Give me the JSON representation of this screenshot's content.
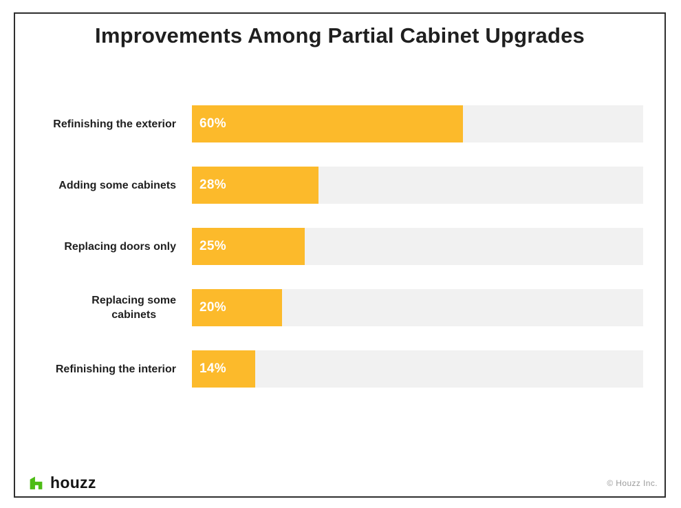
{
  "chart_data": {
    "type": "bar",
    "orientation": "horizontal",
    "title": "Improvements Among Partial Cabinet Upgrades",
    "categories": [
      "Refinishing the exterior",
      "Adding some cabinets",
      "Replacing doors only",
      "Replacing some\ncabinets",
      "Refinishing the interior"
    ],
    "values": [
      60,
      28,
      25,
      20,
      14
    ],
    "value_labels": [
      "60%",
      "28%",
      "25%",
      "20%",
      "14%"
    ],
    "xlabel": "",
    "ylabel": "",
    "xlim": [
      0,
      100
    ],
    "grid": false,
    "legend": "none",
    "bar_color": "#FCBA2B",
    "track_color": "#F1F1F1",
    "label_color": "#1F1F1F",
    "value_text_color": "#FFFFFF"
  },
  "frame": {
    "border_color": "#2E2E2E",
    "background": "#FFFFFF"
  },
  "footer": {
    "logo_text": "houzz",
    "logo_icon": "houzz-h-house-icon",
    "logo_green": "#4DBC15",
    "copyright": "© Houzz Inc."
  }
}
